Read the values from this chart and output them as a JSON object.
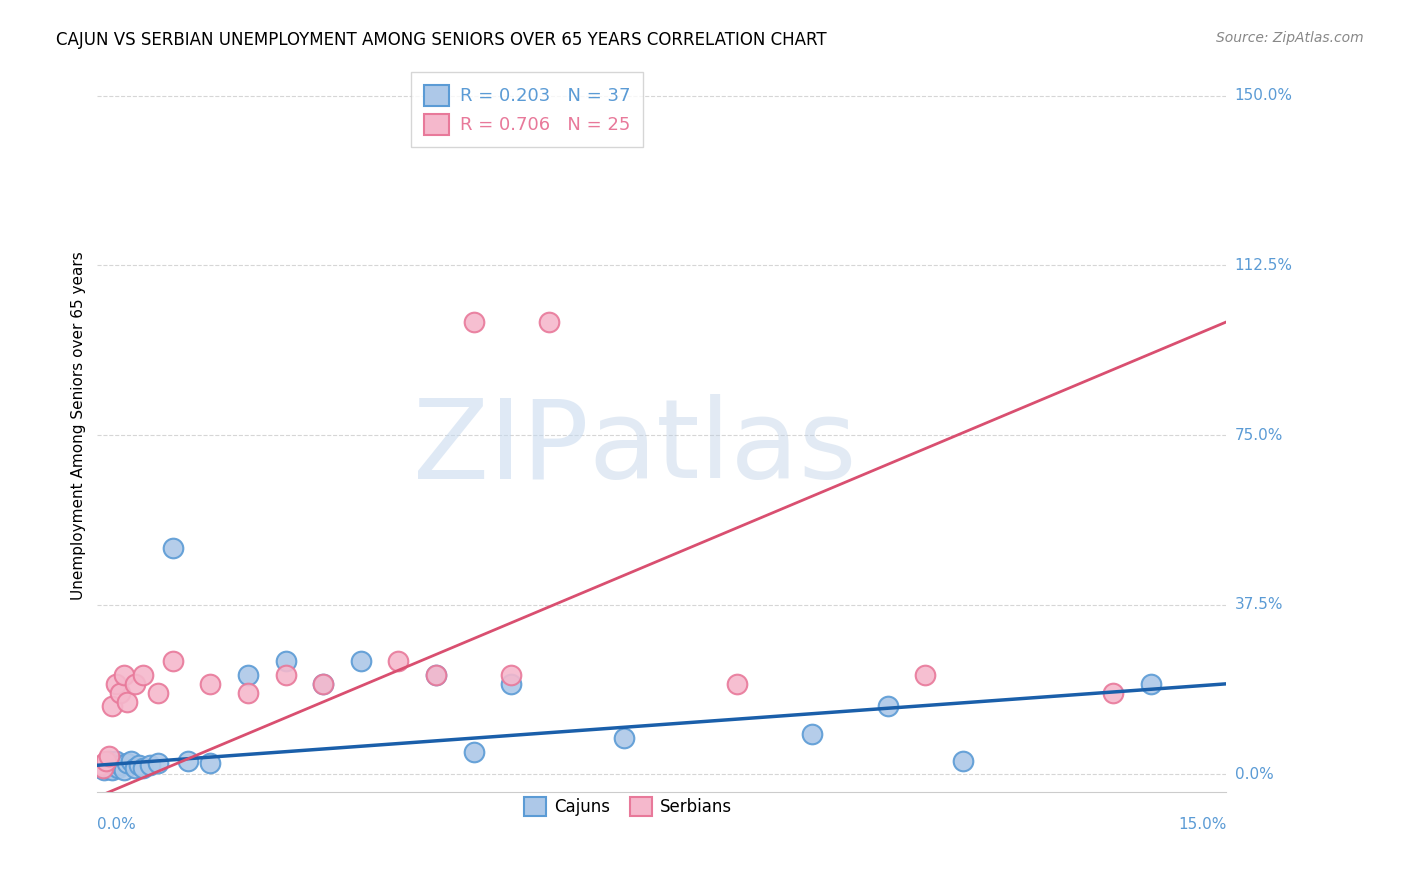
{
  "title": "CAJUN VS SERBIAN UNEMPLOYMENT AMONG SENIORS OVER 65 YEARS CORRELATION CHART",
  "source": "Source: ZipAtlas.com",
  "ylabel": "Unemployment Among Seniors over 65 years",
  "ytick_labels": [
    "0.0%",
    "37.5%",
    "75.0%",
    "112.5%",
    "150.0%"
  ],
  "ytick_values": [
    0.0,
    37.5,
    75.0,
    112.5,
    150.0
  ],
  "xmin": 0.0,
  "xmax": 15.0,
  "ymin": -4.0,
  "ymax": 158.0,
  "cajun_color": "#adc8e8",
  "cajun_edge_color": "#5b9bd5",
  "serbian_color": "#f5b8cc",
  "serbian_edge_color": "#e8799a",
  "cajun_line_color": "#1a5faa",
  "serbian_line_color": "#d94f70",
  "legend_cajun_label": "Cajuns",
  "legend_serbian_label": "Serbians",
  "R_cajun": 0.203,
  "N_cajun": 37,
  "R_serbian": 0.706,
  "N_serbian": 25,
  "grid_color": "#cccccc",
  "background_color": "#ffffff",
  "cajun_x": [
    0.05,
    0.07,
    0.09,
    0.1,
    0.12,
    0.14,
    0.15,
    0.17,
    0.18,
    0.2,
    0.22,
    0.25,
    0.28,
    0.3,
    0.35,
    0.4,
    0.45,
    0.5,
    0.55,
    0.6,
    0.7,
    0.8,
    1.0,
    1.2,
    1.5,
    2.0,
    2.5,
    3.0,
    3.5,
    4.5,
    5.0,
    5.5,
    7.0,
    9.5,
    10.5,
    11.5,
    14.0
  ],
  "cajun_y": [
    1.5,
    2.0,
    1.0,
    2.5,
    1.5,
    2.0,
    3.0,
    1.5,
    2.5,
    1.0,
    2.0,
    3.0,
    1.5,
    2.0,
    1.0,
    2.5,
    3.0,
    1.5,
    2.0,
    1.5,
    2.0,
    2.5,
    50.0,
    3.0,
    2.5,
    22.0,
    25.0,
    20.0,
    25.0,
    22.0,
    5.0,
    20.0,
    8.0,
    9.0,
    15.0,
    3.0,
    20.0
  ],
  "serbian_x": [
    0.05,
    0.08,
    0.12,
    0.15,
    0.2,
    0.25,
    0.3,
    0.35,
    0.4,
    0.5,
    0.6,
    0.8,
    1.0,
    1.5,
    2.0,
    2.5,
    3.0,
    4.0,
    4.5,
    5.0,
    5.5,
    6.0,
    8.5,
    11.0,
    13.5
  ],
  "serbian_y": [
    2.0,
    1.5,
    3.0,
    4.0,
    15.0,
    20.0,
    18.0,
    22.0,
    16.0,
    20.0,
    22.0,
    18.0,
    25.0,
    20.0,
    18.0,
    22.0,
    20.0,
    25.0,
    22.0,
    100.0,
    22.0,
    100.0,
    20.0,
    22.0,
    18.0
  ]
}
